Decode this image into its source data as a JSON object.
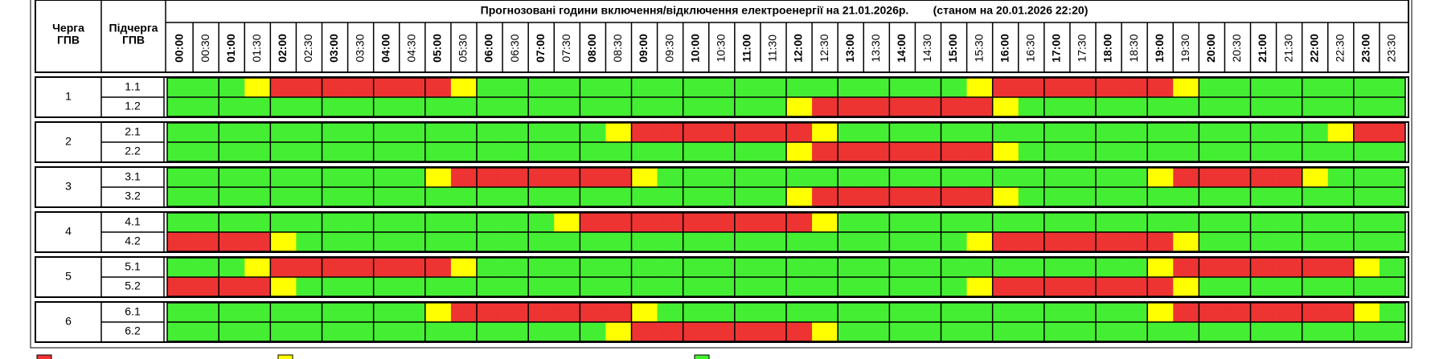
{
  "header": {
    "title": "Прогнозовані години включення/відключення електроенергії на 21.01.2026р.",
    "status": "(станом на 20.01.2026 22:20)",
    "queue_label": [
      "Черга",
      "ГПВ"
    ],
    "subqueue_label": [
      "Підчерга",
      "ГПВ"
    ],
    "times": [
      "00:00",
      "00:30",
      "01:00",
      "01:30",
      "02:00",
      "02:30",
      "03:00",
      "03:30",
      "04:00",
      "04:30",
      "05:00",
      "05:30",
      "06:00",
      "06:30",
      "07:00",
      "07:30",
      "08:00",
      "08:30",
      "09:00",
      "09:30",
      "10:00",
      "10:30",
      "11:00",
      "11:30",
      "12:00",
      "12:30",
      "13:00",
      "13:30",
      "14:00",
      "14:30",
      "15:00",
      "15:30",
      "16:00",
      "16:30",
      "17:00",
      "17:30",
      "18:00",
      "18:30",
      "19:00",
      "19:30",
      "20:00",
      "20:30",
      "21:00",
      "21:30",
      "22:00",
      "22:30",
      "23:00",
      "23:30"
    ]
  },
  "groups": [
    {
      "label": "1",
      "subgroups": [
        {
          "label": "1.1",
          "slots": [
            "#4e3",
            "#4e3",
            "#4e3",
            "#ff0",
            "#e33",
            "#e33",
            "#e33",
            "#e33",
            "#e33",
            "#e33",
            "#e33",
            "#ff0",
            "#4e3",
            "#4e3",
            "#4e3",
            "#4e3",
            "#4e3",
            "#4e3",
            "#4e3",
            "#4e3",
            "#4e3",
            "#4e3",
            "#4e3",
            "#4e3",
            "#4e3",
            "#4e3",
            "#4e3",
            "#4e3",
            "#4e3",
            "#4e3",
            "#4e3",
            "#ff0",
            "#e33",
            "#e33",
            "#e33",
            "#e33",
            "#e33",
            "#e33",
            "#e33",
            "#ff0",
            "#4e3",
            "#4e3",
            "#4e3",
            "#4e3",
            "#4e3",
            "#4e3",
            "#4e3",
            "#4e3"
          ]
        },
        {
          "label": "1.2",
          "slots": [
            "#4e3",
            "#4e3",
            "#4e3",
            "#4e3",
            "#4e3",
            "#4e3",
            "#4e3",
            "#4e3",
            "#4e3",
            "#4e3",
            "#4e3",
            "#4e3",
            "#4e3",
            "#4e3",
            "#4e3",
            "#4e3",
            "#4e3",
            "#4e3",
            "#4e3",
            "#4e3",
            "#4e3",
            "#4e3",
            "#4e3",
            "#4e3",
            "#ff0",
            "#e33",
            "#e33",
            "#e33",
            "#e33",
            "#e33",
            "#e33",
            "#e33",
            "#ff0",
            "#4e3",
            "#4e3",
            "#4e3",
            "#4e3",
            "#4e3",
            "#4e3",
            "#4e3",
            "#4e3",
            "#4e3",
            "#4e3",
            "#4e3",
            "#4e3",
            "#4e3",
            "#4e3",
            "#4e3"
          ]
        }
      ]
    },
    {
      "label": "2",
      "subgroups": [
        {
          "label": "2.1",
          "slots": [
            "#4e3",
            "#4e3",
            "#4e3",
            "#4e3",
            "#4e3",
            "#4e3",
            "#4e3",
            "#4e3",
            "#4e3",
            "#4e3",
            "#4e3",
            "#4e3",
            "#4e3",
            "#4e3",
            "#4e3",
            "#4e3",
            "#4e3",
            "#ff0",
            "#e33",
            "#e33",
            "#e33",
            "#e33",
            "#e33",
            "#e33",
            "#e33",
            "#ff0",
            "#4e3",
            "#4e3",
            "#4e3",
            "#4e3",
            "#4e3",
            "#4e3",
            "#4e3",
            "#4e3",
            "#4e3",
            "#4e3",
            "#4e3",
            "#4e3",
            "#4e3",
            "#4e3",
            "#4e3",
            "#4e3",
            "#4e3",
            "#4e3",
            "#4e3",
            "#ff0",
            "#e33",
            "#e33"
          ]
        },
        {
          "label": "2.2",
          "slots": [
            "#4e3",
            "#4e3",
            "#4e3",
            "#4e3",
            "#4e3",
            "#4e3",
            "#4e3",
            "#4e3",
            "#4e3",
            "#4e3",
            "#4e3",
            "#4e3",
            "#4e3",
            "#4e3",
            "#4e3",
            "#4e3",
            "#4e3",
            "#4e3",
            "#4e3",
            "#4e3",
            "#4e3",
            "#4e3",
            "#4e3",
            "#4e3",
            "#ff0",
            "#e33",
            "#e33",
            "#e33",
            "#e33",
            "#e33",
            "#e33",
            "#e33",
            "#ff0",
            "#4e3",
            "#4e3",
            "#4e3",
            "#4e3",
            "#4e3",
            "#4e3",
            "#4e3",
            "#4e3",
            "#4e3",
            "#4e3",
            "#4e3",
            "#4e3",
            "#4e3",
            "#4e3",
            "#4e3"
          ]
        }
      ]
    },
    {
      "label": "3",
      "subgroups": [
        {
          "label": "3.1",
          "slots": [
            "#4e3",
            "#4e3",
            "#4e3",
            "#4e3",
            "#4e3",
            "#4e3",
            "#4e3",
            "#4e3",
            "#4e3",
            "#4e3",
            "#ff0",
            "#e33",
            "#e33",
            "#e33",
            "#e33",
            "#e33",
            "#e33",
            "#e33",
            "#ff0",
            "#4e3",
            "#4e3",
            "#4e3",
            "#4e3",
            "#4e3",
            "#4e3",
            "#4e3",
            "#4e3",
            "#4e3",
            "#4e3",
            "#4e3",
            "#4e3",
            "#4e3",
            "#4e3",
            "#4e3",
            "#4e3",
            "#4e3",
            "#4e3",
            "#4e3",
            "#ff0",
            "#e33",
            "#e33",
            "#e33",
            "#e33",
            "#e33",
            "#ff0",
            "#4e3",
            "#4e3",
            "#4e3"
          ]
        },
        {
          "label": "3.2",
          "slots": [
            "#4e3",
            "#4e3",
            "#4e3",
            "#4e3",
            "#4e3",
            "#4e3",
            "#4e3",
            "#4e3",
            "#4e3",
            "#4e3",
            "#4e3",
            "#4e3",
            "#4e3",
            "#4e3",
            "#4e3",
            "#4e3",
            "#4e3",
            "#4e3",
            "#4e3",
            "#4e3",
            "#4e3",
            "#4e3",
            "#4e3",
            "#4e3",
            "#ff0",
            "#e33",
            "#e33",
            "#e33",
            "#e33",
            "#e33",
            "#e33",
            "#e33",
            "#ff0",
            "#4e3",
            "#4e3",
            "#4e3",
            "#4e3",
            "#4e3",
            "#4e3",
            "#4e3",
            "#4e3",
            "#4e3",
            "#4e3",
            "#4e3",
            "#4e3",
            "#4e3",
            "#4e3",
            "#4e3"
          ]
        }
      ]
    },
    {
      "label": "4",
      "subgroups": [
        {
          "label": "4.1",
          "slots": [
            "#4e3",
            "#4e3",
            "#4e3",
            "#4e3",
            "#4e3",
            "#4e3",
            "#4e3",
            "#4e3",
            "#4e3",
            "#4e3",
            "#4e3",
            "#4e3",
            "#4e3",
            "#4e3",
            "#4e3",
            "#ff0",
            "#e33",
            "#e33",
            "#e33",
            "#e33",
            "#e33",
            "#e33",
            "#e33",
            "#e33",
            "#e33",
            "#ff0",
            "#4e3",
            "#4e3",
            "#4e3",
            "#4e3",
            "#4e3",
            "#4e3",
            "#4e3",
            "#4e3",
            "#4e3",
            "#4e3",
            "#4e3",
            "#4e3",
            "#4e3",
            "#4e3",
            "#4e3",
            "#4e3",
            "#4e3",
            "#4e3",
            "#4e3",
            "#4e3",
            "#4e3",
            "#4e3"
          ]
        },
        {
          "label": "4.2",
          "slots": [
            "#e33",
            "#e33",
            "#e33",
            "#e33",
            "#ff0",
            "#4e3",
            "#4e3",
            "#4e3",
            "#4e3",
            "#4e3",
            "#4e3",
            "#4e3",
            "#4e3",
            "#4e3",
            "#4e3",
            "#4e3",
            "#4e3",
            "#4e3",
            "#4e3",
            "#4e3",
            "#4e3",
            "#4e3",
            "#4e3",
            "#4e3",
            "#4e3",
            "#4e3",
            "#4e3",
            "#4e3",
            "#4e3",
            "#4e3",
            "#4e3",
            "#ff0",
            "#e33",
            "#e33",
            "#e33",
            "#e33",
            "#e33",
            "#e33",
            "#e33",
            "#ff0",
            "#4e3",
            "#4e3",
            "#4e3",
            "#4e3",
            "#4e3",
            "#4e3",
            "#4e3",
            "#4e3"
          ]
        }
      ]
    },
    {
      "label": "5",
      "subgroups": [
        {
          "label": "5.1",
          "slots": [
            "#4e3",
            "#4e3",
            "#4e3",
            "#ff0",
            "#e33",
            "#e33",
            "#e33",
            "#e33",
            "#e33",
            "#e33",
            "#e33",
            "#ff0",
            "#4e3",
            "#4e3",
            "#4e3",
            "#4e3",
            "#4e3",
            "#4e3",
            "#4e3",
            "#4e3",
            "#4e3",
            "#4e3",
            "#4e3",
            "#4e3",
            "#4e3",
            "#4e3",
            "#4e3",
            "#4e3",
            "#4e3",
            "#4e3",
            "#4e3",
            "#4e3",
            "#4e3",
            "#4e3",
            "#4e3",
            "#4e3",
            "#4e3",
            "#4e3",
            "#ff0",
            "#e33",
            "#e33",
            "#e33",
            "#e33",
            "#e33",
            "#e33",
            "#e33",
            "#ff0",
            "#4e3"
          ]
        },
        {
          "label": "5.2",
          "slots": [
            "#e33",
            "#e33",
            "#e33",
            "#e33",
            "#ff0",
            "#4e3",
            "#4e3",
            "#4e3",
            "#4e3",
            "#4e3",
            "#4e3",
            "#4e3",
            "#4e3",
            "#4e3",
            "#4e3",
            "#4e3",
            "#4e3",
            "#4e3",
            "#4e3",
            "#4e3",
            "#4e3",
            "#4e3",
            "#4e3",
            "#4e3",
            "#4e3",
            "#4e3",
            "#4e3",
            "#4e3",
            "#4e3",
            "#4e3",
            "#4e3",
            "#ff0",
            "#e33",
            "#e33",
            "#e33",
            "#e33",
            "#e33",
            "#e33",
            "#e33",
            "#ff0",
            "#4e3",
            "#4e3",
            "#4e3",
            "#4e3",
            "#4e3",
            "#4e3",
            "#4e3",
            "#4e3"
          ]
        }
      ]
    },
    {
      "label": "6",
      "subgroups": [
        {
          "label": "6.1",
          "slots": [
            "#4e3",
            "#4e3",
            "#4e3",
            "#4e3",
            "#4e3",
            "#4e3",
            "#4e3",
            "#4e3",
            "#4e3",
            "#4e3",
            "#ff0",
            "#e33",
            "#e33",
            "#e33",
            "#e33",
            "#e33",
            "#e33",
            "#e33",
            "#ff0",
            "#4e3",
            "#4e3",
            "#4e3",
            "#4e3",
            "#4e3",
            "#4e3",
            "#4e3",
            "#4e3",
            "#4e3",
            "#4e3",
            "#4e3",
            "#4e3",
            "#4e3",
            "#4e3",
            "#4e3",
            "#4e3",
            "#4e3",
            "#4e3",
            "#4e3",
            "#ff0",
            "#e33",
            "#e33",
            "#e33",
            "#e33",
            "#e33",
            "#e33",
            "#e33",
            "#ff0",
            "#4e3"
          ]
        },
        {
          "label": "6.2",
          "slots": [
            "#4e3",
            "#4e3",
            "#4e3",
            "#4e3",
            "#4e3",
            "#4e3",
            "#4e3",
            "#4e3",
            "#4e3",
            "#4e3",
            "#4e3",
            "#4e3",
            "#4e3",
            "#4e3",
            "#4e3",
            "#4e3",
            "#4e3",
            "#ff0",
            "#e33",
            "#e33",
            "#e33",
            "#e33",
            "#e33",
            "#e33",
            "#e33",
            "#ff0",
            "#4e3",
            "#4e3",
            "#4e3",
            "#4e3",
            "#4e3",
            "#4e3",
            "#4e3",
            "#4e3",
            "#4e3",
            "#4e3",
            "#4e3",
            "#4e3",
            "#4e3",
            "#4e3",
            "#4e3",
            "#4e3",
            "#4e3",
            "#4e3",
            "#4e3",
            "#4e3",
            "#4e3",
            "#4e3"
          ]
        }
      ]
    }
  ],
  "legend": {
    "colors": [
      "#e33",
      "#ff0",
      "#4e3"
    ]
  }
}
